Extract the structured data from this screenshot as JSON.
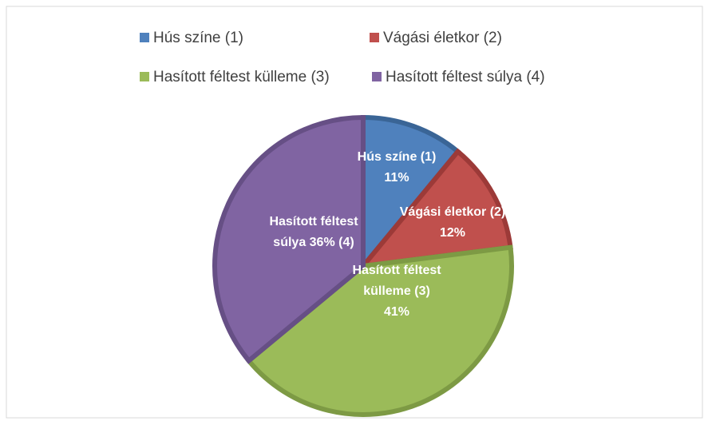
{
  "chart_data": {
    "type": "pie",
    "categories": [
      "Hús színe (1)",
      "Vágási életkor (2)",
      "Hasított féltest külleme (3)",
      "Hasított féltest súlya (4)"
    ],
    "values": [
      11,
      12,
      41,
      36
    ],
    "colors": [
      "#4f81bd",
      "#c0504d",
      "#9bbb59",
      "#8064a2"
    ],
    "stroke_colors": [
      "#3a6596",
      "#9c3a38",
      "#7d9a44",
      "#664f85"
    ],
    "data_labels": [
      [
        "Hús színe (1)",
        "11%"
      ],
      [
        "Vágási életkor (2)",
        "12%"
      ],
      [
        "Hasított féltest",
        "külleme (3)",
        "41%"
      ],
      [
        "Hasított féltest",
        "súlya  36% (4)"
      ]
    ],
    "legend": "top"
  }
}
